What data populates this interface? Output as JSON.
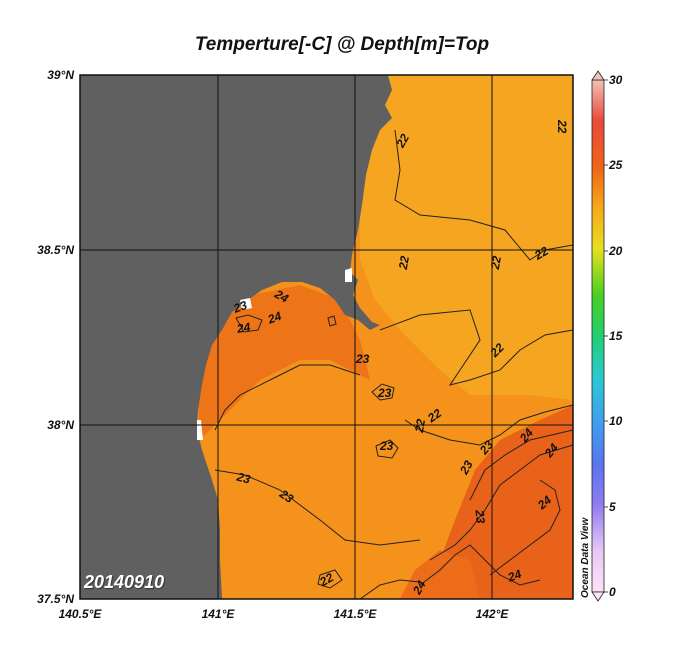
{
  "title": "Temperture[-C] @ Depth[m]=Top",
  "date_label": "20140910",
  "watermark": "Ocean Data View",
  "lat_labels": [
    "39°N",
    "38.5°N",
    "38°N",
    "37.5°N"
  ],
  "lon_labels": [
    "140.5°E",
    "141°E",
    "141.5°E",
    "142°E"
  ],
  "colorbar": {
    "ticks": [
      "30",
      "25",
      "20",
      "15",
      "10",
      "5",
      "0"
    ],
    "range": [
      0,
      30
    ]
  },
  "contour_labels": [
    "22",
    "22",
    "22",
    "22",
    "22",
    "22",
    "22",
    "22",
    "23",
    "23",
    "23",
    "23",
    "23",
    "23",
    "23",
    "23",
    "23",
    "24",
    "24",
    "24",
    "24",
    "24",
    "24",
    "24",
    "24",
    "22"
  ],
  "colors": {
    "land": "#606060",
    "sea_warm": "#f07a18",
    "sea_mid": "#f4961c",
    "sea_cool": "#f6ac20",
    "sea_hot": "#e8601a"
  }
}
